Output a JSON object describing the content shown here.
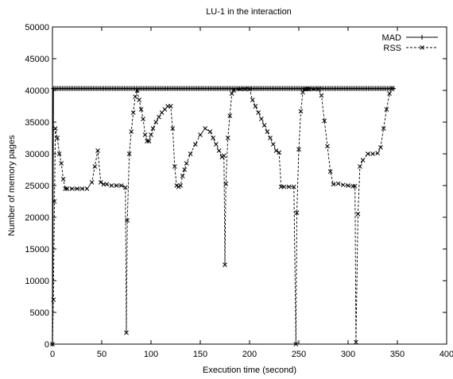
{
  "chart_data": {
    "type": "line",
    "title": "LU-1 in the interaction",
    "xlabel": "Execution time (second)",
    "ylabel": "Number of memory pages",
    "xlim": [
      0,
      400
    ],
    "ylim": [
      0,
      50000
    ],
    "xticks": [
      0,
      50,
      100,
      150,
      200,
      250,
      300,
      350,
      400
    ],
    "yticks": [
      0,
      5000,
      10000,
      15000,
      20000,
      25000,
      30000,
      35000,
      40000,
      45000,
      50000
    ],
    "grid": false,
    "legend_position": "top-right",
    "series": [
      {
        "name": "MAD",
        "marker": "+",
        "line": "solid",
        "x": [
          0,
          1,
          2,
          100,
          200,
          300,
          347
        ],
        "y": [
          0,
          40300,
          40300,
          40300,
          40300,
          40300,
          40300
        ]
      },
      {
        "name": "RSS",
        "marker": "x",
        "line": "dashed",
        "x": [
          0,
          1,
          2,
          3,
          5,
          7,
          9,
          11,
          13,
          15,
          20,
          25,
          30,
          35,
          40,
          43,
          46,
          49,
          52,
          55,
          60,
          65,
          70,
          74,
          75,
          76,
          78,
          80,
          82,
          84,
          86,
          88,
          90,
          92,
          94,
          96,
          98,
          100,
          102,
          105,
          108,
          111,
          114,
          117,
          120,
          122,
          124,
          126,
          128,
          130,
          132,
          134,
          136,
          140,
          145,
          150,
          155,
          160,
          163,
          166,
          169,
          172,
          174,
          175,
          176,
          178,
          180,
          182,
          184,
          190,
          195,
          200,
          203,
          206,
          209,
          212,
          215,
          218,
          221,
          224,
          227,
          230,
          232,
          235,
          240,
          245,
          247,
          248,
          250,
          252,
          254,
          256,
          258,
          260,
          265,
          270,
          273,
          276,
          279,
          282,
          285,
          290,
          295,
          300,
          305,
          307,
          308,
          310,
          312,
          315,
          320,
          325,
          330,
          333,
          336,
          339,
          342,
          345
        ],
        "y": [
          0,
          7000,
          22500,
          34000,
          32500,
          30000,
          28500,
          26000,
          24500,
          24500,
          24500,
          24500,
          24500,
          24500,
          25500,
          28000,
          30500,
          25500,
          25200,
          25200,
          25000,
          25000,
          25000,
          24700,
          1800,
          19500,
          30000,
          33500,
          36500,
          39000,
          40000,
          38500,
          37000,
          35500,
          33000,
          32000,
          32000,
          33000,
          34000,
          35000,
          35800,
          36500,
          37000,
          37500,
          37500,
          34000,
          28000,
          25000,
          24800,
          25000,
          26500,
          27500,
          28500,
          30000,
          31500,
          33000,
          34000,
          33500,
          32500,
          31500,
          30500,
          29500,
          29700,
          12500,
          25300,
          32500,
          36000,
          39500,
          40000,
          40200,
          40200,
          40200,
          38500,
          37500,
          36500,
          35500,
          34500,
          33500,
          32500,
          31500,
          30500,
          30200,
          24800,
          24800,
          24800,
          24800,
          0,
          20700,
          30700,
          36700,
          39700,
          40200,
          40200,
          40200,
          40200,
          40200,
          39200,
          35200,
          31200,
          27200,
          25200,
          25300,
          25100,
          25000,
          24900,
          24900,
          300,
          20500,
          28000,
          29000,
          30000,
          30000,
          30100,
          31000,
          34000,
          37000,
          39500,
          40300
        ]
      }
    ]
  }
}
